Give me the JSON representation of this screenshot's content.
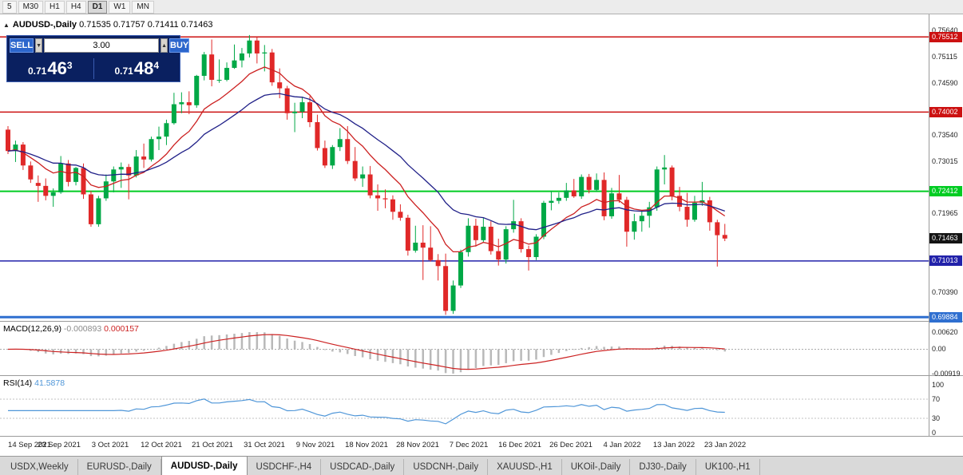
{
  "toolbar": {
    "timeframes": [
      {
        "label": "5",
        "active": false
      },
      {
        "label": "M30",
        "active": false
      },
      {
        "label": "H1",
        "active": false
      },
      {
        "label": "H4",
        "active": false
      },
      {
        "label": "D1",
        "active": true
      },
      {
        "label": "W1",
        "active": false
      },
      {
        "label": "MN",
        "active": false
      }
    ]
  },
  "chart": {
    "collapse_glyph": "▲",
    "title": "AUDUSD-,Daily",
    "ohlc": "0.71535 0.71757 0.71411 0.71463"
  },
  "trade_panel": {
    "sell_label": "SELL",
    "buy_label": "BUY",
    "volume": "3.00",
    "volume_down_glyph": "▼",
    "volume_up_glyph": "▲",
    "sell": {
      "prefix": "0.71",
      "big": "46",
      "sup": "3"
    },
    "buy": {
      "prefix": "0.71",
      "big": "48",
      "sup": "4"
    }
  },
  "price_axis": {
    "plain_labels": [
      {
        "text": "0.75640",
        "price": 0.7564
      },
      {
        "text": "0.75115",
        "price": 0.75115
      },
      {
        "text": "0.74590",
        "price": 0.7459
      },
      {
        "text": "0.73540",
        "price": 0.7354
      },
      {
        "text": "0.73015",
        "price": 0.73015
      },
      {
        "text": "0.71965",
        "price": 0.71965
      },
      {
        "text": "0.70390",
        "price": 0.7039
      }
    ],
    "badges": [
      {
        "text": "0.75512",
        "price": 0.75512,
        "bg": "#cc1111",
        "fg": "#ffffff"
      },
      {
        "text": "0.74002",
        "price": 0.74002,
        "bg": "#cc1111",
        "fg": "#ffffff"
      },
      {
        "text": "0.72412",
        "price": 0.72412,
        "bg": "#00cc22",
        "fg": "#ffffff"
      },
      {
        "text": "0.71463",
        "price": 0.71463,
        "bg": "#141414",
        "fg": "#ffffff"
      },
      {
        "text": "0.71013",
        "price": 0.71013,
        "bg": "#2222aa",
        "fg": "#ffffff"
      },
      {
        "text": "0.69884",
        "price": 0.69884,
        "bg": "#2f6fd0",
        "fg": "#ffffff"
      }
    ]
  },
  "macd": {
    "name": "MACD(12,26,9)",
    "value_main": "-0.000893",
    "value_signal": "0.000157",
    "axis": {
      "max": "0.00620",
      "zero": "0.00",
      "min": "-0.00919"
    },
    "params": {
      "fast": 12,
      "slow": 26,
      "signal": 9
    }
  },
  "rsi": {
    "name": "RSI(14)",
    "value": "41.5878",
    "period": 14,
    "axis": [
      {
        "text": "100",
        "level": 100
      },
      {
        "text": "70",
        "level": 70
      },
      {
        "text": "30",
        "level": 30
      },
      {
        "text": "0",
        "level": 0
      }
    ],
    "dotted_levels": [
      70,
      30
    ]
  },
  "dates": [
    "14 Sep 2021",
    "23 Sep 2021",
    "3 Oct 2021",
    "12 Oct 2021",
    "21 Oct 2021",
    "31 Oct 2021",
    "9 Nov 2021",
    "18 Nov 2021",
    "28 Nov 2021",
    "7 Dec 2021",
    "16 Dec 2021",
    "26 Dec 2021",
    "4 Jan 2022",
    "13 Jan 2022",
    "23 Jan 2022"
  ],
  "tabs": [
    {
      "label": "USDX,Weekly",
      "active": false
    },
    {
      "label": "EURUSD-,Daily",
      "active": false
    },
    {
      "label": "AUDUSD-,Daily",
      "active": true
    },
    {
      "label": "USDCHF-,H4",
      "active": false
    },
    {
      "label": "USDCAD-,Daily",
      "active": false
    },
    {
      "label": "USDCNH-,Daily",
      "active": false
    },
    {
      "label": "XAUUSD-,H1",
      "active": false
    },
    {
      "label": "UKOil-,Daily",
      "active": false
    },
    {
      "label": "DJ30-,Daily",
      "active": false
    },
    {
      "label": "UK100-,H1",
      "active": false
    }
  ],
  "chart_data": {
    "type": "candlestick",
    "symbol": "AUDUSD",
    "timeframe": "Daily",
    "title": "AUDUSD-,Daily 0.71535 0.71757 0.71411 0.71463",
    "x_labels": [
      "14 Sep 2021",
      "23 Sep 2021",
      "3 Oct 2021",
      "12 Oct 2021",
      "21 Oct 2021",
      "31 Oct 2021",
      "9 Nov 2021",
      "18 Nov 2021",
      "28 Nov 2021",
      "7 Dec 2021",
      "16 Dec 2021",
      "26 Dec 2021",
      "4 Jan 2022",
      "13 Jan 2022",
      "23 Jan 2022"
    ],
    "ylim": [
      0.69808,
      0.75965
    ],
    "colors": {
      "bull": "#00a846",
      "bear": "#e02828"
    },
    "overlays": {
      "ma_fast": {
        "period": 10,
        "color": "#cc2020"
      },
      "ma_slow": {
        "period": 22,
        "color": "#202088"
      }
    },
    "hlines": [
      {
        "price": 0.75512,
        "color": "#cc1111",
        "width": 1.5
      },
      {
        "price": 0.74002,
        "color": "#cc1111",
        "width": 1.5
      },
      {
        "price": 0.72412,
        "color": "#00cc22",
        "width": 2
      },
      {
        "price": 0.71013,
        "color": "#2222aa",
        "width": 1.5
      },
      {
        "price": 0.69884,
        "color": "#2f6fd0",
        "width": 3
      }
    ],
    "candles": [
      [
        0.7365,
        0.7372,
        0.7316,
        0.7322
      ],
      [
        0.7322,
        0.7343,
        0.73,
        0.7335
      ],
      [
        0.7335,
        0.734,
        0.7284,
        0.7293
      ],
      [
        0.7293,
        0.7301,
        0.7258,
        0.7265
      ],
      [
        0.7258,
        0.7273,
        0.722,
        0.7252
      ],
      [
        0.7252,
        0.7267,
        0.7223,
        0.7232
      ],
      [
        0.7232,
        0.7247,
        0.721,
        0.7239
      ],
      [
        0.7239,
        0.7312,
        0.7236,
        0.7297
      ],
      [
        0.7297,
        0.7304,
        0.7251,
        0.726
      ],
      [
        0.726,
        0.729,
        0.7253,
        0.7288
      ],
      [
        0.7288,
        0.7297,
        0.7226,
        0.7235
      ],
      [
        0.7235,
        0.7242,
        0.717,
        0.7175
      ],
      [
        0.7175,
        0.7232,
        0.717,
        0.7227
      ],
      [
        0.7227,
        0.7275,
        0.7222,
        0.7261
      ],
      [
        0.7261,
        0.7291,
        0.7239,
        0.7285
      ],
      [
        0.7285,
        0.7299,
        0.7248,
        0.729
      ],
      [
        0.729,
        0.7296,
        0.7225,
        0.7273
      ],
      [
        0.7273,
        0.7324,
        0.7269,
        0.7311
      ],
      [
        0.7311,
        0.7337,
        0.7288,
        0.7305
      ],
      [
        0.7305,
        0.7351,
        0.7301,
        0.7346
      ],
      [
        0.7346,
        0.7371,
        0.7324,
        0.7351
      ],
      [
        0.7351,
        0.7385,
        0.7334,
        0.7378
      ],
      [
        0.7378,
        0.7439,
        0.7375,
        0.7416
      ],
      [
        0.7416,
        0.744,
        0.7398,
        0.742
      ],
      [
        0.742,
        0.7442,
        0.7396,
        0.7414
      ],
      [
        0.7414,
        0.7475,
        0.7409,
        0.7473
      ],
      [
        0.7473,
        0.7521,
        0.7464,
        0.7516
      ],
      [
        0.7516,
        0.7546,
        0.7452,
        0.7465
      ],
      [
        0.7465,
        0.7506,
        0.7459,
        0.7465
      ],
      [
        0.7465,
        0.75,
        0.7462,
        0.7489
      ],
      [
        0.7489,
        0.7536,
        0.7487,
        0.7504
      ],
      [
        0.7504,
        0.7529,
        0.749,
        0.7518
      ],
      [
        0.7518,
        0.7555,
        0.751,
        0.7544
      ],
      [
        0.7544,
        0.755,
        0.7498,
        0.7518
      ],
      [
        0.7518,
        0.7535,
        0.7482,
        0.752
      ],
      [
        0.752,
        0.7527,
        0.7453,
        0.746
      ],
      [
        0.746,
        0.7488,
        0.7428,
        0.7448
      ],
      [
        0.7448,
        0.7453,
        0.7385,
        0.7398
      ],
      [
        0.7398,
        0.7419,
        0.736,
        0.7401
      ],
      [
        0.7401,
        0.7431,
        0.7388,
        0.742
      ],
      [
        0.742,
        0.7432,
        0.737,
        0.738
      ],
      [
        0.738,
        0.7395,
        0.7323,
        0.7328
      ],
      [
        0.7328,
        0.7343,
        0.7288,
        0.7293
      ],
      [
        0.7293,
        0.7334,
        0.7286,
        0.733
      ],
      [
        0.733,
        0.7368,
        0.7322,
        0.7346
      ],
      [
        0.7346,
        0.7372,
        0.7296,
        0.7302
      ],
      [
        0.7302,
        0.733,
        0.7262,
        0.7267
      ],
      [
        0.7267,
        0.7291,
        0.725,
        0.7275
      ],
      [
        0.7275,
        0.7292,
        0.7227,
        0.7233
      ],
      [
        0.7233,
        0.7255,
        0.7202,
        0.7227
      ],
      [
        0.7227,
        0.7245,
        0.7207,
        0.7225
      ],
      [
        0.7225,
        0.7233,
        0.7184,
        0.72
      ],
      [
        0.72,
        0.7215,
        0.7182,
        0.7188
      ],
      [
        0.7188,
        0.7194,
        0.7112,
        0.7122
      ],
      [
        0.7122,
        0.7172,
        0.7118,
        0.7138
      ],
      [
        0.7138,
        0.7173,
        0.7063,
        0.7128
      ],
      [
        0.7128,
        0.7171,
        0.71,
        0.7103
      ],
      [
        0.7103,
        0.7115,
        0.7062,
        0.7091
      ],
      [
        0.7091,
        0.7116,
        0.6993,
        0.7001
      ],
      [
        0.7001,
        0.7062,
        0.6995,
        0.7052
      ],
      [
        0.7052,
        0.7124,
        0.7047,
        0.7119
      ],
      [
        0.7119,
        0.7187,
        0.711,
        0.7172
      ],
      [
        0.7172,
        0.7186,
        0.713,
        0.7143
      ],
      [
        0.7143,
        0.7188,
        0.7139,
        0.717
      ],
      [
        0.717,
        0.7181,
        0.7114,
        0.7121
      ],
      [
        0.7121,
        0.7146,
        0.7092,
        0.7104
      ],
      [
        0.7104,
        0.7171,
        0.7096,
        0.7165
      ],
      [
        0.7165,
        0.7224,
        0.7158,
        0.7181
      ],
      [
        0.7181,
        0.7187,
        0.7118,
        0.7125
      ],
      [
        0.7125,
        0.7132,
        0.7082,
        0.7109
      ],
      [
        0.7109,
        0.7155,
        0.7103,
        0.715
      ],
      [
        0.715,
        0.7222,
        0.7145,
        0.7218
      ],
      [
        0.7218,
        0.7242,
        0.7203,
        0.7222
      ],
      [
        0.7222,
        0.7239,
        0.7216,
        0.7228
      ],
      [
        0.7228,
        0.7258,
        0.7222,
        0.7243
      ],
      [
        0.7243,
        0.7266,
        0.7228,
        0.7231
      ],
      [
        0.7231,
        0.7275,
        0.7226,
        0.727
      ],
      [
        0.727,
        0.7276,
        0.7237,
        0.7244
      ],
      [
        0.7244,
        0.7277,
        0.724,
        0.7264
      ],
      [
        0.7264,
        0.7279,
        0.7183,
        0.7191
      ],
      [
        0.7191,
        0.7248,
        0.7186,
        0.7237
      ],
      [
        0.7237,
        0.7274,
        0.7218,
        0.7224
      ],
      [
        0.7224,
        0.723,
        0.713,
        0.716
      ],
      [
        0.716,
        0.7196,
        0.7144,
        0.7181
      ],
      [
        0.7181,
        0.7202,
        0.716,
        0.7192
      ],
      [
        0.7192,
        0.722,
        0.7168,
        0.7209
      ],
      [
        0.7209,
        0.7291,
        0.7202,
        0.7285
      ],
      [
        0.7285,
        0.7314,
        0.7255,
        0.7289
      ],
      [
        0.7289,
        0.7293,
        0.7223,
        0.7232
      ],
      [
        0.7232,
        0.725,
        0.7201,
        0.721
      ],
      [
        0.721,
        0.7238,
        0.717,
        0.7184
      ],
      [
        0.7184,
        0.7232,
        0.718,
        0.7218
      ],
      [
        0.7218,
        0.726,
        0.7212,
        0.7223
      ],
      [
        0.7223,
        0.723,
        0.7162,
        0.7179
      ],
      [
        0.7179,
        0.7184,
        0.709,
        0.7153
      ],
      [
        0.71535,
        0.71757,
        0.71411,
        0.71463
      ]
    ]
  }
}
